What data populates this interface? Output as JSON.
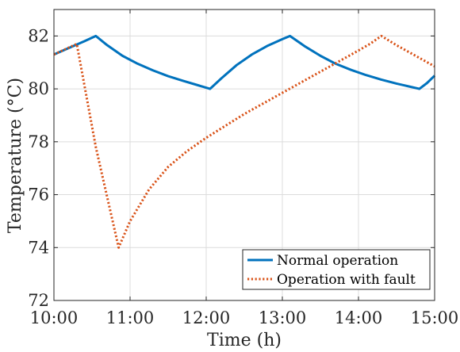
{
  "chart_data": {
    "type": "line",
    "title": "",
    "xlabel": "Time (h)",
    "ylabel": "Temperature (°C)",
    "xlim": [
      10.0,
      15.0
    ],
    "ylim": [
      72,
      83
    ],
    "x_ticks": [
      10,
      11,
      12,
      13,
      14,
      15
    ],
    "x_tick_labels": [
      "10:00",
      "11:00",
      "12:00",
      "13:00",
      "14:00",
      "15:00"
    ],
    "y_ticks": [
      72,
      74,
      76,
      78,
      80,
      82
    ],
    "y_tick_labels": [
      "72",
      "74",
      "76",
      "78",
      "80",
      "82"
    ],
    "grid": true,
    "legend_position": "bottom-right",
    "series": [
      {
        "name": "Normal operation",
        "color": "#0072BD",
        "style": "solid",
        "points": [
          [
            10.0,
            81.3
          ],
          [
            10.2,
            81.55
          ],
          [
            10.4,
            81.8
          ],
          [
            10.55,
            82.0
          ],
          [
            10.7,
            81.65
          ],
          [
            10.9,
            81.25
          ],
          [
            11.1,
            80.95
          ],
          [
            11.3,
            80.7
          ],
          [
            11.5,
            80.48
          ],
          [
            11.7,
            80.3
          ],
          [
            11.9,
            80.13
          ],
          [
            12.05,
            80.0
          ],
          [
            12.2,
            80.4
          ],
          [
            12.4,
            80.9
          ],
          [
            12.6,
            81.3
          ],
          [
            12.8,
            81.62
          ],
          [
            13.0,
            81.88
          ],
          [
            13.1,
            82.0
          ],
          [
            13.3,
            81.6
          ],
          [
            13.5,
            81.25
          ],
          [
            13.7,
            80.95
          ],
          [
            13.9,
            80.72
          ],
          [
            14.1,
            80.52
          ],
          [
            14.3,
            80.35
          ],
          [
            14.5,
            80.2
          ],
          [
            14.65,
            80.1
          ],
          [
            14.8,
            80.0
          ],
          [
            14.9,
            80.22
          ],
          [
            15.0,
            80.5
          ]
        ]
      },
      {
        "name": "Operation with fault",
        "color": "#D95319",
        "style": "dotted",
        "points": [
          [
            10.0,
            81.3
          ],
          [
            10.15,
            81.5
          ],
          [
            10.3,
            81.7
          ],
          [
            10.55,
            77.8
          ],
          [
            10.85,
            74.0
          ],
          [
            11.0,
            75.0
          ],
          [
            11.25,
            76.2
          ],
          [
            11.5,
            77.05
          ],
          [
            11.75,
            77.65
          ],
          [
            12.0,
            78.15
          ],
          [
            12.25,
            78.6
          ],
          [
            12.5,
            79.05
          ],
          [
            12.75,
            79.45
          ],
          [
            13.0,
            79.85
          ],
          [
            13.25,
            80.25
          ],
          [
            13.5,
            80.65
          ],
          [
            13.75,
            81.05
          ],
          [
            14.0,
            81.45
          ],
          [
            14.15,
            81.7
          ],
          [
            14.3,
            82.0
          ],
          [
            14.5,
            81.65
          ],
          [
            14.75,
            81.25
          ],
          [
            15.0,
            80.85
          ]
        ]
      }
    ]
  }
}
